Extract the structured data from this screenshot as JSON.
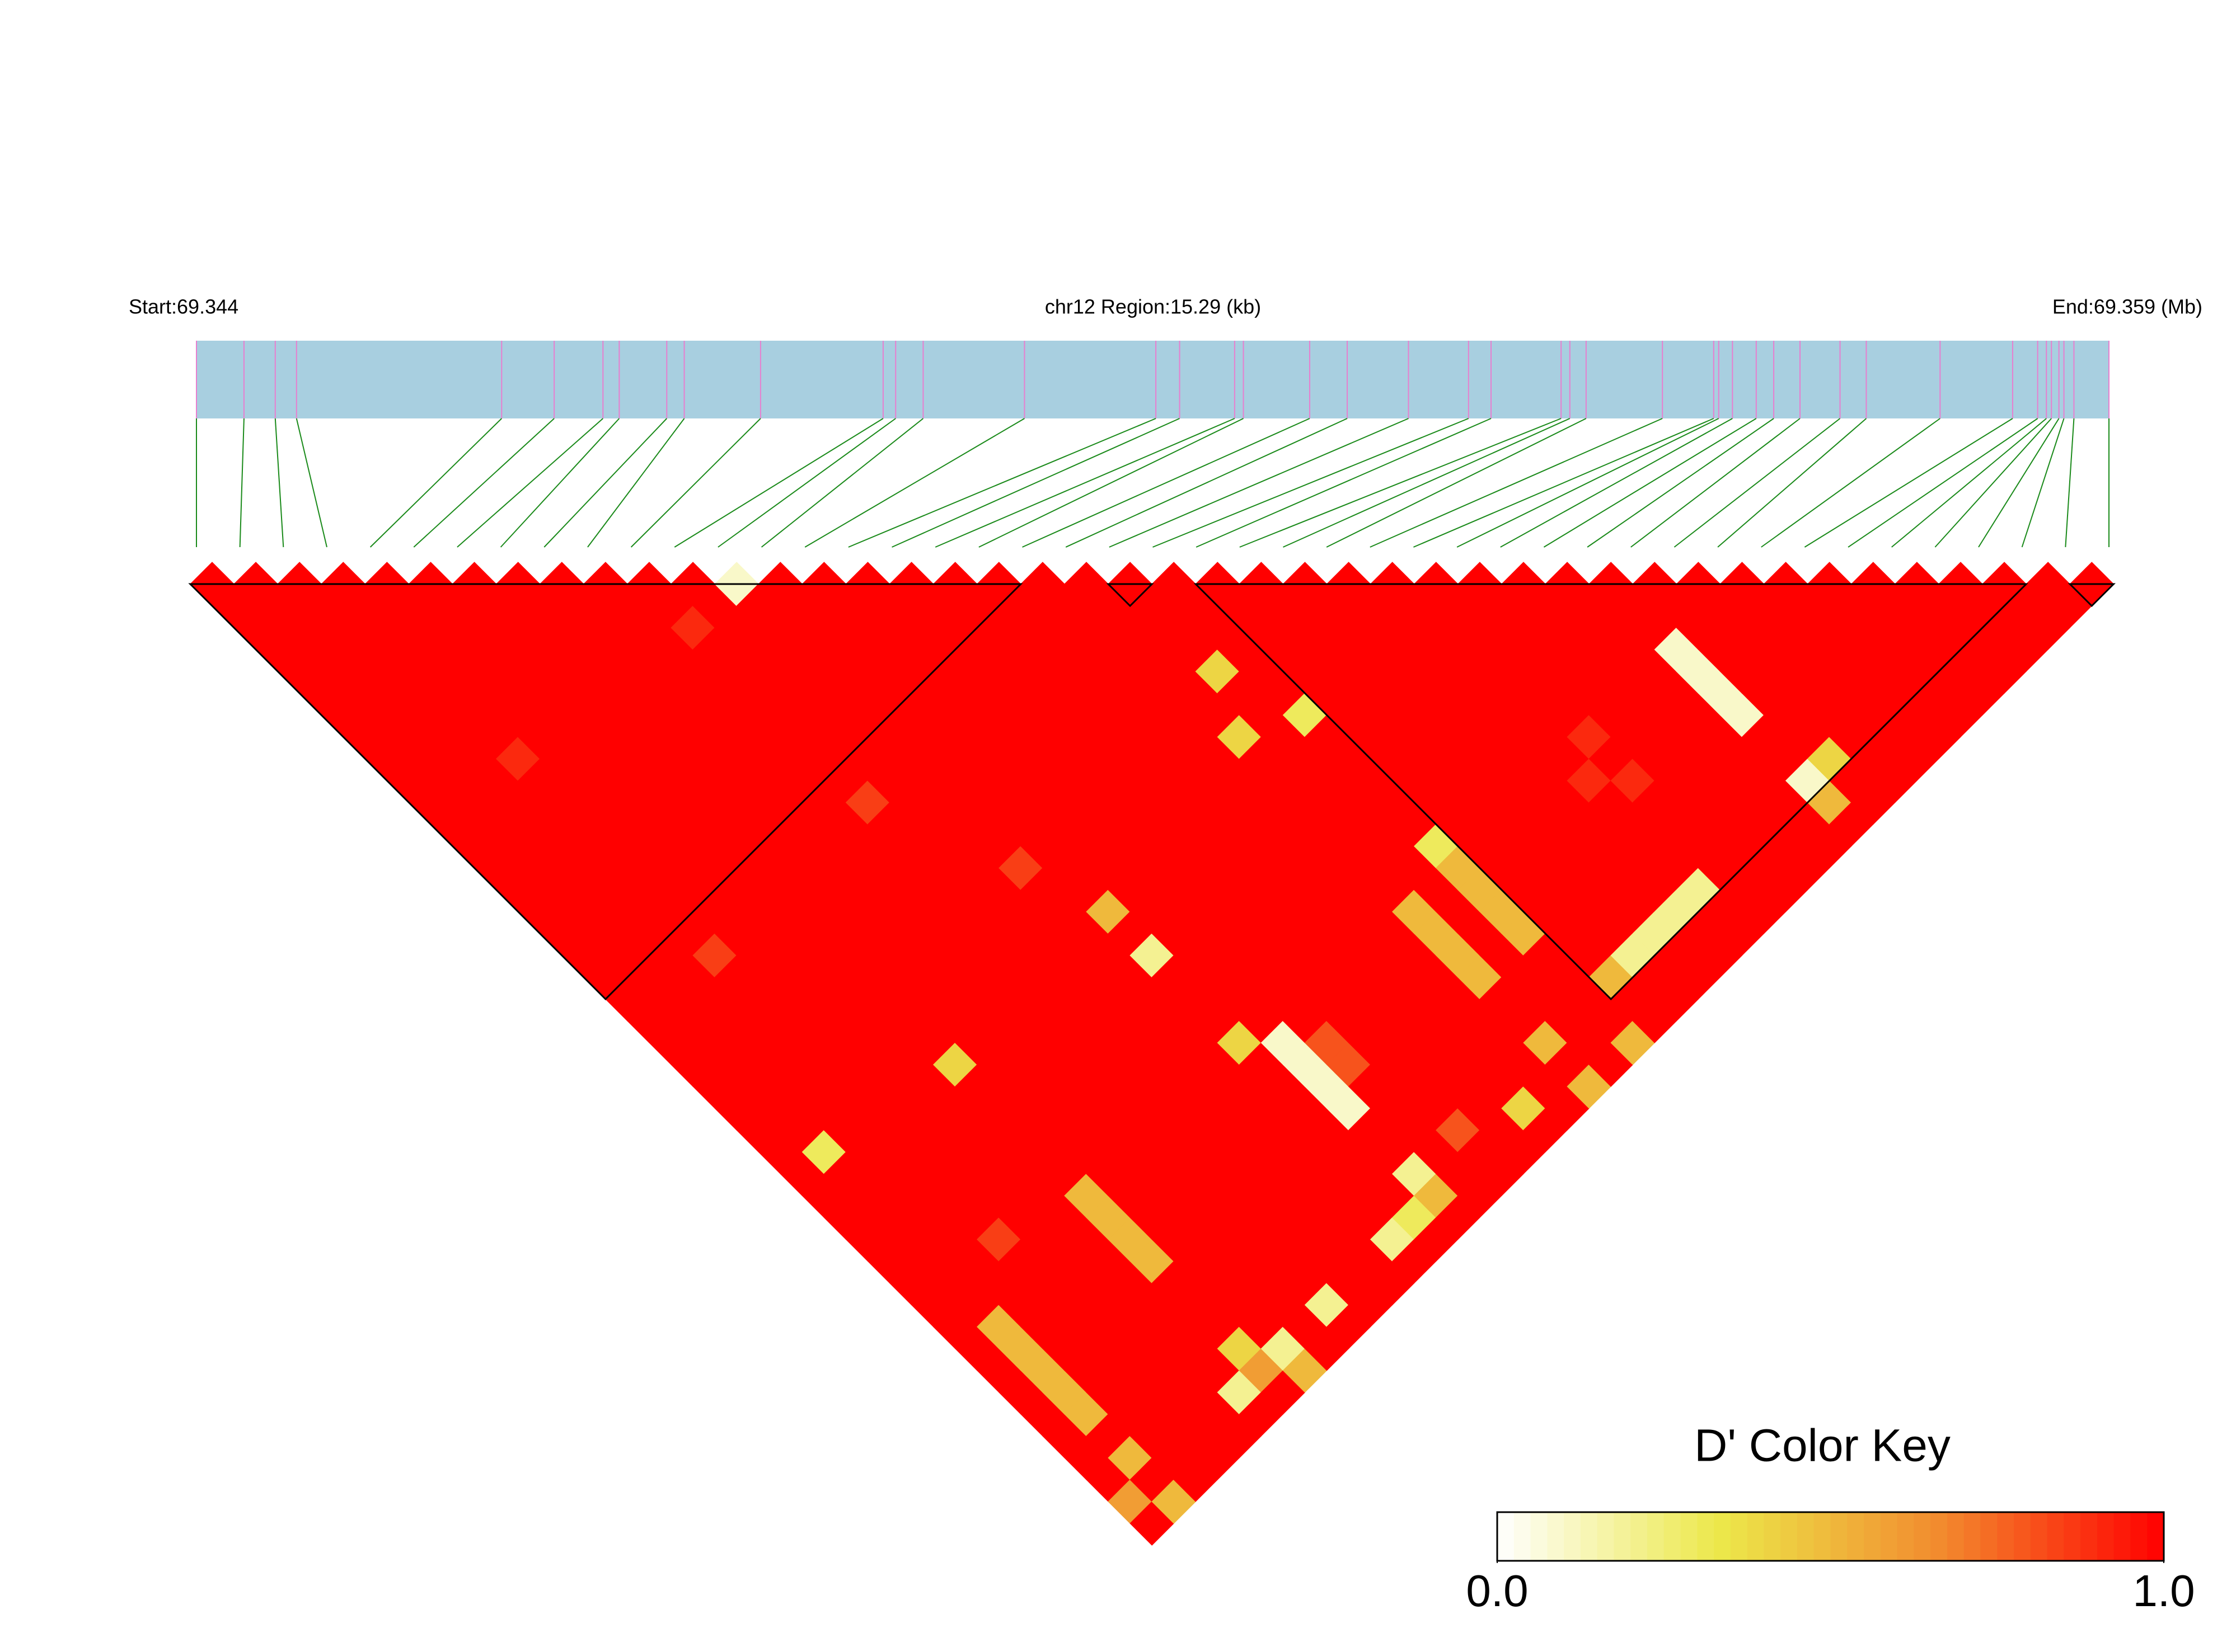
{
  "chart_data": {
    "type": "heatmap",
    "title": "chr12 Region:15.29 (kb)",
    "start_label": "Start:69.344",
    "end_label": "End:69.359 (Mb)",
    "xlim": [
      0,
      15.29
    ],
    "positions": [
      0,
      0.38,
      0.63,
      0.8,
      2.44,
      2.86,
      3.25,
      3.38,
      3.76,
      3.9,
      4.51,
      5.49,
      5.59,
      5.81,
      6.62,
      7.67,
      7.86,
      8.3,
      8.37,
      8.9,
      9.2,
      9.69,
      10.17,
      10.35,
      10.91,
      10.98,
      11.11,
      11.72,
      12.13,
      12.17,
      12.28,
      12.47,
      12.61,
      12.82,
      13.14,
      13.35,
      13.94,
      14.52,
      14.72,
      14.79,
      14.83,
      14.89,
      14.93,
      15.01,
      15.29
    ],
    "track_color": "#a8cfe0",
    "position_line_color": "#e77fcf",
    "connector_color": "#1a8a1a",
    "block_color": "#000000",
    "colors": [
      "#ffffff",
      "#ece84a",
      "#f28a2e",
      "#ff0000"
    ],
    "blocks": [
      [
        0,
        19
      ],
      [
        21,
        22
      ],
      [
        23,
        42
      ],
      [
        43,
        44
      ]
    ],
    "d_prime": [
      [
        1,
        1,
        1,
        1,
        1,
        1,
        1,
        1,
        1,
        1,
        1,
        1,
        1,
        1,
        1,
        1,
        1,
        1,
        1,
        1,
        1,
        1,
        1,
        1,
        1,
        1,
        1,
        1,
        1,
        1,
        1,
        1,
        1,
        1,
        1,
        1,
        1,
        1,
        1,
        1,
        1,
        1,
        0.6,
        1
      ],
      [
        1,
        1,
        1,
        1,
        1,
        1,
        1,
        1,
        1,
        1,
        1,
        1,
        1,
        1,
        1,
        1,
        1,
        1,
        1,
        1,
        1,
        1,
        1,
        1,
        1,
        1,
        0.3,
        1,
        1,
        1,
        1,
        1,
        1,
        1,
        0.5,
        0.5,
        0.5,
        0.5,
        0.5,
        1,
        0.5,
        1,
        0.5
      ],
      [
        1,
        1,
        1,
        1,
        1,
        1,
        1,
        1,
        1,
        1,
        1,
        1,
        1,
        1,
        1,
        1,
        1,
        1,
        1,
        1,
        1,
        1,
        1,
        1,
        1,
        1,
        1,
        1,
        1,
        1,
        1,
        1,
        1,
        1,
        1,
        1,
        1,
        1,
        1,
        1,
        1,
        1
      ],
      [
        1,
        1,
        1,
        1,
        1,
        1,
        1,
        1,
        0.9,
        1,
        1,
        1,
        1,
        1,
        1,
        1,
        1,
        0.85,
        1,
        1,
        1,
        1,
        1,
        1,
        1,
        1,
        1,
        1,
        1,
        1,
        0.85,
        1,
        1,
        1,
        1,
        1,
        1,
        1,
        1,
        1,
        1
      ],
      [
        1,
        1,
        1,
        1,
        1,
        1,
        1,
        1,
        1,
        1,
        1,
        1,
        1,
        1,
        1,
        1,
        1,
        1,
        1,
        1,
        1,
        1,
        1,
        1,
        1,
        1,
        1,
        1,
        1,
        1,
        1,
        1,
        1,
        1,
        1,
        1,
        1,
        1,
        1,
        1
      ],
      [
        1,
        1,
        1,
        1,
        1,
        1,
        1,
        1,
        1,
        1,
        1,
        1,
        1,
        1,
        1,
        1,
        1,
        1,
        1,
        1,
        1,
        1,
        1,
        1,
        1,
        1,
        1,
        1,
        1,
        1,
        1,
        1,
        1,
        1,
        1,
        1,
        1,
        0.2,
        1
      ],
      [
        1,
        1,
        1,
        1,
        1,
        1,
        1,
        1,
        1,
        1,
        1,
        1,
        1,
        1,
        1,
        1,
        1,
        1,
        1,
        1,
        1,
        1,
        0.4,
        1,
        1,
        1,
        1,
        1,
        0.5,
        0.5,
        0.5,
        0.5,
        1,
        1,
        1,
        0.4,
        0.6,
        1
      ],
      [
        1,
        1,
        1,
        1,
        1,
        1,
        1,
        1,
        1,
        1,
        1,
        1,
        1,
        1,
        1,
        1,
        1,
        1,
        1,
        1,
        1,
        1,
        1,
        1,
        1,
        1,
        1,
        1,
        1,
        1,
        1,
        1,
        1,
        1,
        1,
        0.2,
        0.5
      ],
      [
        1,
        1,
        1,
        1,
        1,
        1,
        1,
        1,
        1,
        1,
        1,
        1,
        1,
        1,
        1,
        1,
        1,
        1,
        1,
        1,
        1,
        1,
        1,
        1,
        1,
        1,
        1,
        1,
        1,
        1,
        1,
        1,
        1,
        1,
        1,
        1
      ],
      [
        1,
        1,
        1,
        1,
        1,
        1,
        1,
        1,
        1,
        1,
        1,
        1,
        1,
        1,
        1,
        1,
        1,
        1,
        1,
        1,
        1,
        1,
        1,
        1,
        1,
        1,
        1,
        1,
        1,
        1,
        1,
        1,
        1,
        0.2,
        1
      ],
      [
        1,
        1,
        0.9,
        1,
        1,
        1,
        1,
        1,
        1,
        1,
        0.85,
        1,
        1,
        1,
        1,
        1,
        1,
        1,
        1,
        1,
        1,
        1,
        1,
        1,
        1,
        1,
        1,
        1,
        1,
        1,
        1,
        1,
        1,
        1
      ],
      [
        1,
        1,
        1,
        1,
        1,
        1,
        1,
        1,
        1,
        1,
        1,
        1,
        1,
        1,
        1,
        1,
        1,
        1,
        1,
        1,
        1,
        1,
        1,
        1,
        1,
        1,
        1,
        1,
        1,
        1,
        1,
        1,
        1
      ],
      [
        0.1,
        1,
        1,
        1,
        1,
        1,
        1,
        1,
        1,
        1,
        1,
        1,
        1,
        0.85,
        1,
        1,
        1,
        1,
        1,
        1,
        1,
        1,
        1,
        1,
        1,
        1,
        1,
        1,
        1,
        1,
        0.2,
        1
      ],
      [
        1,
        1,
        1,
        1,
        1,
        1,
        1,
        1,
        1,
        1,
        1,
        1,
        1,
        1,
        1,
        0.5,
        1,
        0.2,
        1,
        1,
        1,
        0.4,
        1,
        1,
        1,
        1,
        1,
        1,
        1,
        0.3,
        1
      ],
      [
        1,
        1,
        1,
        1,
        1,
        1,
        1,
        1,
        1,
        1,
        1,
        1,
        1,
        1,
        1,
        1,
        1,
        1,
        1,
        1,
        1,
        0.1,
        0.1,
        0.1,
        0.1,
        1,
        1,
        0.2,
        0.5,
        1
      ],
      [
        1,
        1,
        1,
        1,
        1,
        1,
        1,
        1,
        1,
        1,
        1,
        1,
        1,
        1,
        1,
        1,
        1,
        1,
        1,
        1,
        1,
        0.8,
        0.8,
        1,
        1,
        1,
        1,
        1,
        1
      ],
      [
        1,
        1,
        1,
        1,
        1,
        1,
        1,
        1,
        1,
        1,
        1,
        1,
        1,
        1,
        1,
        1,
        1,
        1,
        1,
        1,
        1,
        1,
        1,
        1,
        1,
        0.8,
        1,
        1
      ],
      [
        1,
        1,
        1,
        1,
        1,
        1,
        1,
        1,
        1,
        1,
        1,
        1,
        1,
        1,
        1,
        1,
        1,
        1,
        1,
        1,
        1,
        1,
        1,
        1,
        1,
        1,
        1
      ],
      [
        1,
        1,
        1,
        1,
        1,
        1,
        1,
        1,
        1,
        1,
        1,
        1,
        1,
        1,
        1,
        1,
        1,
        1,
        1,
        1,
        1,
        1,
        1,
        1,
        0.4,
        1
      ],
      [
        1,
        1,
        1,
        1,
        1,
        1,
        1,
        1,
        1,
        1,
        1,
        1,
        1,
        1,
        1,
        1,
        1,
        1,
        1,
        1,
        1,
        1,
        1,
        1,
        1
      ],
      [
        1,
        1,
        1,
        1,
        1,
        1,
        1,
        0.4,
        1,
        1,
        1,
        1,
        1,
        1,
        1,
        0.5,
        0.5,
        0.5,
        0.5,
        1,
        1,
        0.5,
        1,
        0.5
      ],
      [
        1,
        1,
        1,
        1,
        0.4,
        1,
        1,
        1,
        1,
        1,
        1,
        1,
        1,
        1,
        1,
        1,
        1,
        1,
        1,
        1,
        1,
        1,
        1
      ],
      [
        1,
        1,
        1,
        1,
        1,
        1,
        0.3,
        1,
        1,
        1,
        1,
        1,
        0.3,
        0.5,
        0.5,
        0.5,
        0.5,
        1,
        1,
        1,
        1,
        0.5
      ],
      [
        1,
        1,
        1,
        1,
        1,
        1,
        1,
        1,
        1,
        1,
        1,
        1,
        1,
        1,
        1,
        1,
        1,
        1,
        0.5,
        1,
        1
      ],
      [
        1,
        1,
        1,
        1,
        1,
        1,
        1,
        1,
        1,
        1,
        1,
        1,
        1,
        1,
        1,
        1,
        1,
        0.2,
        1,
        1
      ],
      [
        1,
        1,
        1,
        1,
        1,
        1,
        1,
        1,
        1,
        1,
        1,
        1,
        1,
        1,
        1,
        1,
        0.2,
        1,
        1
      ],
      [
        1,
        1,
        1,
        1,
        1,
        1,
        1,
        1,
        1,
        1,
        1,
        1,
        1,
        1,
        1,
        0.2,
        1,
        1
      ],
      [
        1,
        1,
        1,
        1,
        1,
        1,
        1,
        1,
        1,
        0.9,
        1,
        1,
        1,
        1,
        0.2,
        1,
        1
      ],
      [
        1,
        1,
        1,
        1,
        1,
        1,
        1,
        0.9,
        1,
        0.9,
        1,
        1,
        1,
        1,
        1,
        1
      ],
      [
        1,
        1,
        1,
        1,
        1,
        1,
        1,
        1,
        1,
        1,
        1,
        1,
        1,
        1,
        1
      ],
      [
        1,
        1,
        1,
        1,
        1,
        1,
        1,
        1,
        1,
        1,
        1,
        1,
        1,
        1
      ],
      [
        1,
        1,
        1,
        1,
        1,
        1,
        1,
        1,
        1,
        1,
        1,
        1,
        1
      ],
      [
        1,
        1,
        1,
        0.1,
        0.1,
        0.1,
        0.1,
        1,
        1,
        0.1,
        0.5,
        1
      ],
      [
        1,
        1,
        1,
        1,
        1,
        1,
        1,
        1,
        0.4,
        1,
        1
      ],
      [
        1,
        1,
        1,
        1,
        1,
        1,
        1,
        1,
        1,
        1
      ],
      [
        1,
        1,
        1,
        1,
        1,
        1,
        1,
        1,
        1
      ],
      [
        1,
        1,
        1,
        1,
        1,
        1,
        1,
        1
      ],
      [
        1,
        1,
        1,
        1,
        1,
        1,
        1
      ],
      [
        1,
        1,
        1,
        1,
        1,
        1
      ],
      [
        1,
        1,
        1,
        1,
        1
      ],
      [
        1,
        1,
        1,
        1
      ],
      [
        1,
        1,
        1
      ],
      [
        1,
        1
      ],
      [
        1
      ]
    ],
    "color_key": {
      "title": "D' Color Key",
      "lim": [
        0,
        1
      ],
      "ticks": [
        {
          "value": 0,
          "label": "0.0"
        },
        {
          "value": 1,
          "label": "1.0"
        }
      ]
    }
  }
}
